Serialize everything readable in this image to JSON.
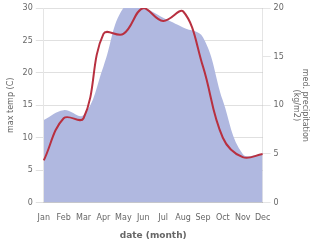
{
  "chart_data": {
    "type": "line",
    "categories": [
      "Jan",
      "Feb",
      "Mar",
      "Apr",
      "May",
      "Jun",
      "Jul",
      "Aug",
      "Sep",
      "Oct",
      "Nov",
      "Dec"
    ],
    "series": [
      {
        "type": "area",
        "axis": "y2",
        "color": "#b0b8e0",
        "values": [
          8.5,
          9.5,
          9.0,
          14.0,
          20.0,
          20.0,
          19.0,
          18.0,
          17.0,
          10.5,
          5.0,
          5.0
        ]
      },
      {
        "type": "line",
        "color": "#b83040",
        "values": [
          6.5,
          13.0,
          13.0,
          26.0,
          26.0,
          30.0,
          28.0,
          29.5,
          21.0,
          10.0,
          7.0,
          7.5
        ]
      }
    ],
    "xlabel": "date (month)",
    "ylabel": "max temp (C)",
    "y2label": "med. precipitation\n(kg/m2)",
    "ylim": [
      0,
      30
    ],
    "yticks": [
      0,
      5,
      10,
      15,
      20,
      25,
      30
    ],
    "y2lim": [
      0,
      20
    ],
    "y2ticks": [
      0,
      5,
      10,
      15,
      20
    ],
    "grid": true
  }
}
